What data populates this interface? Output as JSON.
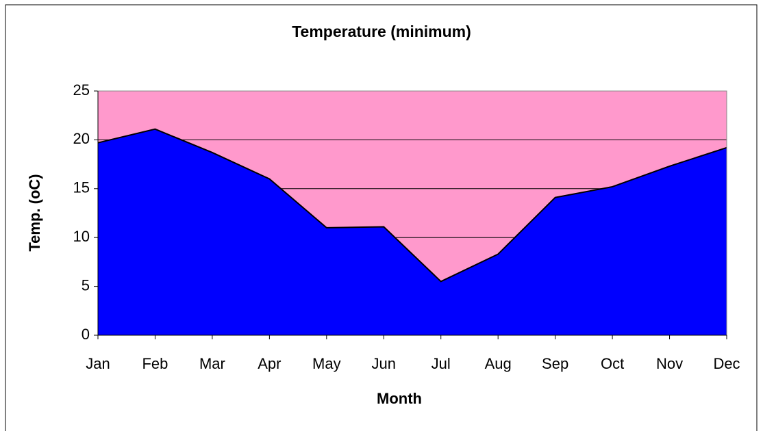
{
  "chart_data": {
    "type": "area",
    "title": "Temperature (minimum)",
    "x_label": "Month",
    "y_label": "Temp. (oC)",
    "categories": [
      "Jan",
      "Feb",
      "Mar",
      "Apr",
      "May",
      "Jun",
      "Jul",
      "Aug",
      "Sep",
      "Oct",
      "Nov",
      "Dec"
    ],
    "values": [
      19.7,
      21.1,
      18.7,
      16.0,
      11.0,
      11.1,
      5.5,
      8.3,
      14.1,
      15.2,
      17.3,
      19.2
    ],
    "color": "#0000ff",
    "plot_background": "#ff99cc",
    "ylim": [
      0,
      25
    ],
    "yticks": [
      0,
      5,
      10,
      15,
      20,
      25
    ],
    "grid": true
  }
}
